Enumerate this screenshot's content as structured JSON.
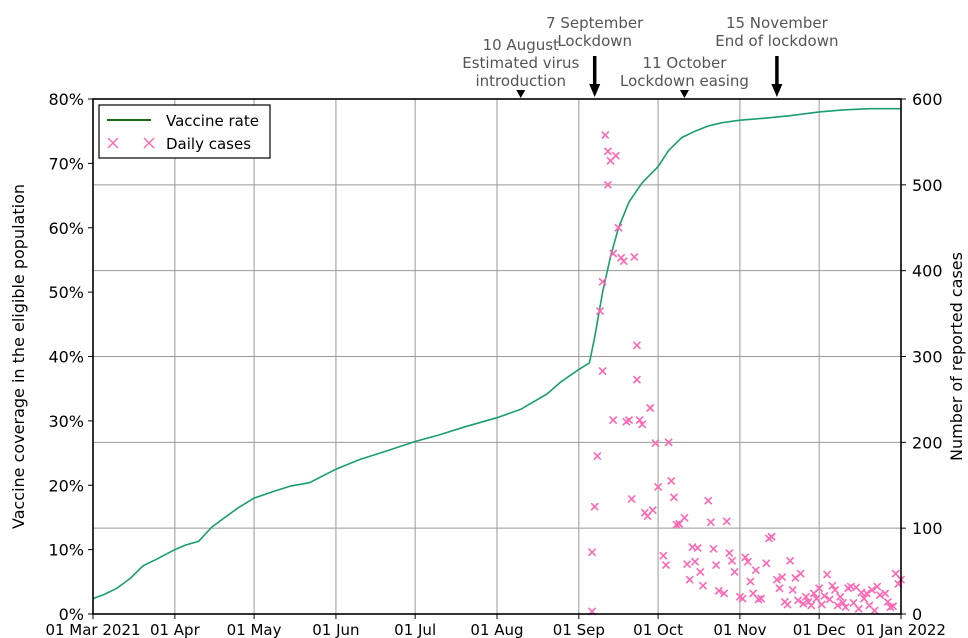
{
  "chart_data": {
    "type": "line+scatter",
    "x_axis": {
      "range": [
        "2021-03-01",
        "2022-01-01"
      ],
      "ticks": [
        {
          "date": "2021-03-01",
          "label": "01 Mar 2021"
        },
        {
          "date": "2021-04-01",
          "label": "01 Apr"
        },
        {
          "date": "2021-05-01",
          "label": "01 May"
        },
        {
          "date": "2021-06-01",
          "label": "01 Jun"
        },
        {
          "date": "2021-07-01",
          "label": "01 Jul"
        },
        {
          "date": "2021-08-01",
          "label": "01 Aug"
        },
        {
          "date": "2021-09-01",
          "label": "01 Sep"
        },
        {
          "date": "2021-10-01",
          "label": "01 Oct"
        },
        {
          "date": "2021-11-01",
          "label": "01 Nov"
        },
        {
          "date": "2021-12-01",
          "label": "01 Dec"
        },
        {
          "date": "2022-01-01",
          "label": "01 Jan 2022"
        }
      ]
    },
    "y_left": {
      "label": "Vaccine coverage in the eligible population",
      "range": [
        0,
        80
      ],
      "ticks": [
        {
          "value": 0,
          "label": "0%"
        },
        {
          "value": 10,
          "label": "10%"
        },
        {
          "value": 20,
          "label": "20%"
        },
        {
          "value": 30,
          "label": "30%"
        },
        {
          "value": 40,
          "label": "40%"
        },
        {
          "value": 50,
          "label": "50%"
        },
        {
          "value": 60,
          "label": "60%"
        },
        {
          "value": 70,
          "label": "70%"
        },
        {
          "value": 80,
          "label": "80%"
        }
      ]
    },
    "y_right": {
      "label": "Number of reported cases",
      "range": [
        0,
        600
      ],
      "ticks": [
        {
          "value": 0,
          "label": "0"
        },
        {
          "value": 100,
          "label": "100"
        },
        {
          "value": 200,
          "label": "200"
        },
        {
          "value": 300,
          "label": "300"
        },
        {
          "value": 400,
          "label": "400"
        },
        {
          "value": 500,
          "label": "500"
        },
        {
          "value": 600,
          "label": "600"
        }
      ]
    },
    "grid": true,
    "legend": {
      "position": "top-left",
      "entries": [
        "Vaccine rate",
        "Daily cases"
      ]
    },
    "colors": {
      "vaccine": "#1a9e6e",
      "cases": "#ff66b3",
      "legend_line": "#1b6b1b"
    },
    "series": [
      {
        "name": "Vaccine rate",
        "kind": "line",
        "axis": "left",
        "points": [
          [
            "2021-03-01",
            2.4
          ],
          [
            "2021-03-05",
            3.0
          ],
          [
            "2021-03-10",
            4.0
          ],
          [
            "2021-03-15",
            5.5
          ],
          [
            "2021-03-20",
            7.5
          ],
          [
            "2021-03-25",
            8.5
          ],
          [
            "2021-04-01",
            10.0
          ],
          [
            "2021-04-05",
            10.7
          ],
          [
            "2021-04-10",
            11.3
          ],
          [
            "2021-04-15",
            13.5
          ],
          [
            "2021-04-20",
            15.0
          ],
          [
            "2021-04-25",
            16.5
          ],
          [
            "2021-05-01",
            18.0
          ],
          [
            "2021-05-08",
            19.0
          ],
          [
            "2021-05-15",
            19.9
          ],
          [
            "2021-05-22",
            20.4
          ],
          [
            "2021-06-01",
            22.5
          ],
          [
            "2021-06-10",
            24.0
          ],
          [
            "2021-06-20",
            25.3
          ],
          [
            "2021-07-01",
            26.8
          ],
          [
            "2021-07-10",
            27.8
          ],
          [
            "2021-07-20",
            29.1
          ],
          [
            "2021-08-01",
            30.5
          ],
          [
            "2021-08-10",
            31.8
          ],
          [
            "2021-08-20",
            34.2
          ],
          [
            "2021-08-25",
            36.0
          ],
          [
            "2021-09-01",
            38.0
          ],
          [
            "2021-09-05",
            39.0
          ],
          [
            "2021-09-07",
            43.0
          ],
          [
            "2021-09-10",
            50.0
          ],
          [
            "2021-09-13",
            55.5
          ],
          [
            "2021-09-16",
            60.0
          ],
          [
            "2021-09-20",
            64.0
          ],
          [
            "2021-09-25",
            67.0
          ],
          [
            "2021-10-01",
            69.5
          ],
          [
            "2021-10-05",
            72.0
          ],
          [
            "2021-10-10",
            74.0
          ],
          [
            "2021-10-15",
            75.0
          ],
          [
            "2021-10-20",
            75.8
          ],
          [
            "2021-10-25",
            76.3
          ],
          [
            "2021-11-01",
            76.7
          ],
          [
            "2021-11-10",
            77.0
          ],
          [
            "2021-11-20",
            77.4
          ],
          [
            "2021-12-01",
            78.0
          ],
          [
            "2021-12-10",
            78.3
          ],
          [
            "2021-12-20",
            78.5
          ],
          [
            "2022-01-01",
            78.5
          ]
        ]
      },
      {
        "name": "Daily cases",
        "kind": "scatter",
        "axis": "right",
        "points": [
          [
            "2021-09-06",
            3
          ],
          [
            "2021-09-06",
            72
          ],
          [
            "2021-09-07",
            125
          ],
          [
            "2021-09-08",
            184
          ],
          [
            "2021-09-09",
            353
          ],
          [
            "2021-09-10",
            283
          ],
          [
            "2021-09-10",
            387
          ],
          [
            "2021-09-11",
            558
          ],
          [
            "2021-09-12",
            500
          ],
          [
            "2021-09-12",
            539
          ],
          [
            "2021-09-13",
            528
          ],
          [
            "2021-09-14",
            420
          ],
          [
            "2021-09-14",
            226
          ],
          [
            "2021-09-15",
            534
          ],
          [
            "2021-09-16",
            450
          ],
          [
            "2021-09-17",
            415
          ],
          [
            "2021-09-18",
            411
          ],
          [
            "2021-09-19",
            224
          ],
          [
            "2021-09-20",
            226
          ],
          [
            "2021-09-21",
            134
          ],
          [
            "2021-09-22",
            416
          ],
          [
            "2021-09-23",
            273
          ],
          [
            "2021-09-23",
            313
          ],
          [
            "2021-09-24",
            226
          ],
          [
            "2021-09-25",
            221
          ],
          [
            "2021-09-26",
            118
          ],
          [
            "2021-09-27",
            114
          ],
          [
            "2021-09-28",
            240
          ],
          [
            "2021-09-29",
            121
          ],
          [
            "2021-09-30",
            199
          ],
          [
            "2021-10-01",
            148
          ],
          [
            "2021-10-03",
            68
          ],
          [
            "2021-10-04",
            57
          ],
          [
            "2021-10-05",
            200
          ],
          [
            "2021-10-06",
            155
          ],
          [
            "2021-10-07",
            136
          ],
          [
            "2021-10-08",
            104
          ],
          [
            "2021-10-09",
            105
          ],
          [
            "2021-10-11",
            112
          ],
          [
            "2021-10-12",
            58
          ],
          [
            "2021-10-13",
            40
          ],
          [
            "2021-10-14",
            78
          ],
          [
            "2021-10-15",
            61
          ],
          [
            "2021-10-16",
            77
          ],
          [
            "2021-10-17",
            49
          ],
          [
            "2021-10-18",
            33
          ],
          [
            "2021-10-20",
            132
          ],
          [
            "2021-10-21",
            107
          ],
          [
            "2021-10-22",
            76
          ],
          [
            "2021-10-23",
            57
          ],
          [
            "2021-10-24",
            27
          ],
          [
            "2021-10-26",
            24
          ],
          [
            "2021-10-27",
            108
          ],
          [
            "2021-10-28",
            71
          ],
          [
            "2021-10-29",
            62
          ],
          [
            "2021-10-30",
            49
          ],
          [
            "2021-11-01",
            20
          ],
          [
            "2021-11-02",
            18
          ],
          [
            "2021-11-03",
            66
          ],
          [
            "2021-11-04",
            61
          ],
          [
            "2021-11-05",
            38
          ],
          [
            "2021-11-06",
            24
          ],
          [
            "2021-11-07",
            51
          ],
          [
            "2021-11-08",
            17
          ],
          [
            "2021-11-09",
            18
          ],
          [
            "2021-11-11",
            59
          ],
          [
            "2021-11-12",
            88
          ],
          [
            "2021-11-13",
            90
          ],
          [
            "2021-11-15",
            40
          ],
          [
            "2021-11-16",
            30
          ],
          [
            "2021-11-17",
            43
          ],
          [
            "2021-11-18",
            14
          ],
          [
            "2021-11-19",
            11
          ],
          [
            "2021-11-20",
            62
          ],
          [
            "2021-11-21",
            28
          ],
          [
            "2021-11-22",
            42
          ],
          [
            "2021-11-23",
            16
          ],
          [
            "2021-11-24",
            47
          ],
          [
            "2021-11-25",
            12
          ],
          [
            "2021-11-26",
            20
          ],
          [
            "2021-11-27",
            14
          ],
          [
            "2021-11-28",
            10
          ],
          [
            "2021-11-29",
            24
          ],
          [
            "2021-11-30",
            18
          ],
          [
            "2021-12-01",
            30
          ],
          [
            "2021-12-02",
            11
          ],
          [
            "2021-12-03",
            21
          ],
          [
            "2021-12-04",
            46
          ],
          [
            "2021-12-05",
            17
          ],
          [
            "2021-12-06",
            33
          ],
          [
            "2021-12-07",
            28
          ],
          [
            "2021-12-08",
            10
          ],
          [
            "2021-12-09",
            20
          ],
          [
            "2021-12-10",
            13
          ],
          [
            "2021-12-11",
            8
          ],
          [
            "2021-12-12",
            30
          ],
          [
            "2021-12-13",
            32
          ],
          [
            "2021-12-14",
            13
          ],
          [
            "2021-12-15",
            31
          ],
          [
            "2021-12-16",
            6
          ],
          [
            "2021-12-17",
            25
          ],
          [
            "2021-12-18",
            18
          ],
          [
            "2021-12-19",
            24
          ],
          [
            "2021-12-20",
            10
          ],
          [
            "2021-12-21",
            28
          ],
          [
            "2021-12-22",
            4
          ],
          [
            "2021-12-23",
            32
          ],
          [
            "2021-12-24",
            22
          ],
          [
            "2021-12-26",
            24
          ],
          [
            "2021-12-27",
            14
          ],
          [
            "2021-12-28",
            8
          ],
          [
            "2021-12-29",
            9
          ],
          [
            "2021-12-30",
            47
          ],
          [
            "2021-12-31",
            35
          ],
          [
            "2022-01-01",
            40
          ]
        ]
      }
    ],
    "annotations": [
      {
        "date": "2021-08-10",
        "lines": [
          "10 August",
          "Estimated virus",
          "introduction"
        ],
        "marker": "triangle"
      },
      {
        "date": "2021-09-07",
        "lines": [
          "7 September",
          "Lockdown"
        ],
        "marker": "arrow"
      },
      {
        "date": "2021-10-11",
        "lines": [
          "11 October",
          "Lockdown easing"
        ],
        "marker": "triangle"
      },
      {
        "date": "2021-11-15",
        "lines": [
          "15 November",
          "End of lockdown"
        ],
        "marker": "arrow"
      }
    ]
  }
}
